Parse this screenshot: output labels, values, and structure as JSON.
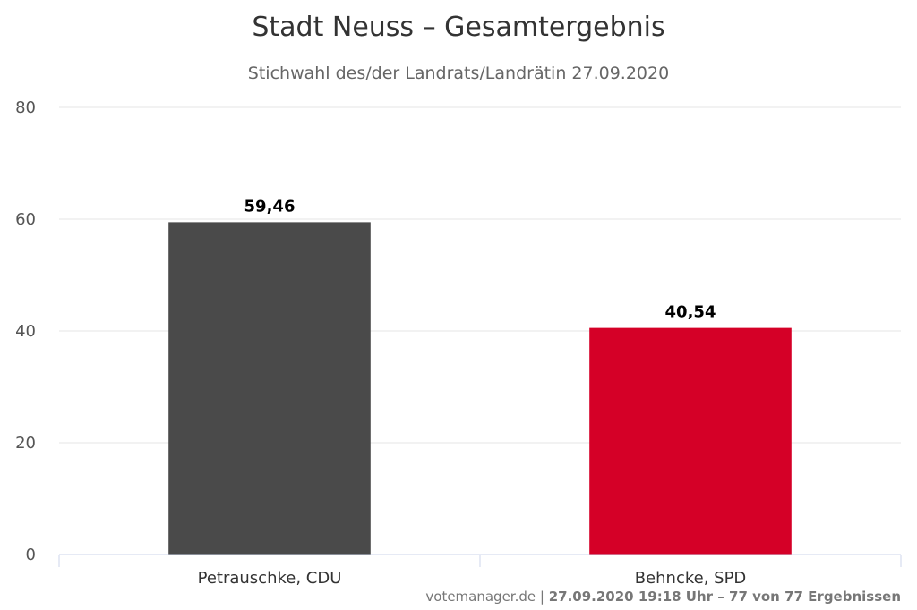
{
  "chart_data": {
    "type": "bar",
    "title": "Stadt Neuss – Gesamtergebnis",
    "subtitle": "Stichwahl des/der Landrats/Landrätin 27.09.2020",
    "categories": [
      "Petrauschke, CDU",
      "Behncke, SPD"
    ],
    "values": [
      59.46,
      40.54
    ],
    "value_labels": [
      "59,46",
      "40,54"
    ],
    "colors": [
      "#4a4a4a",
      "#d50027"
    ],
    "ylim": [
      0,
      80
    ],
    "yticks": [
      "0",
      "20",
      "40",
      "60",
      "80"
    ],
    "grid": true,
    "legend": "none"
  },
  "credit": {
    "source": "votemanager.de",
    "separator": " | ",
    "info": "27.09.2020 19:18 Uhr – 77 von 77 Ergebnissen"
  }
}
